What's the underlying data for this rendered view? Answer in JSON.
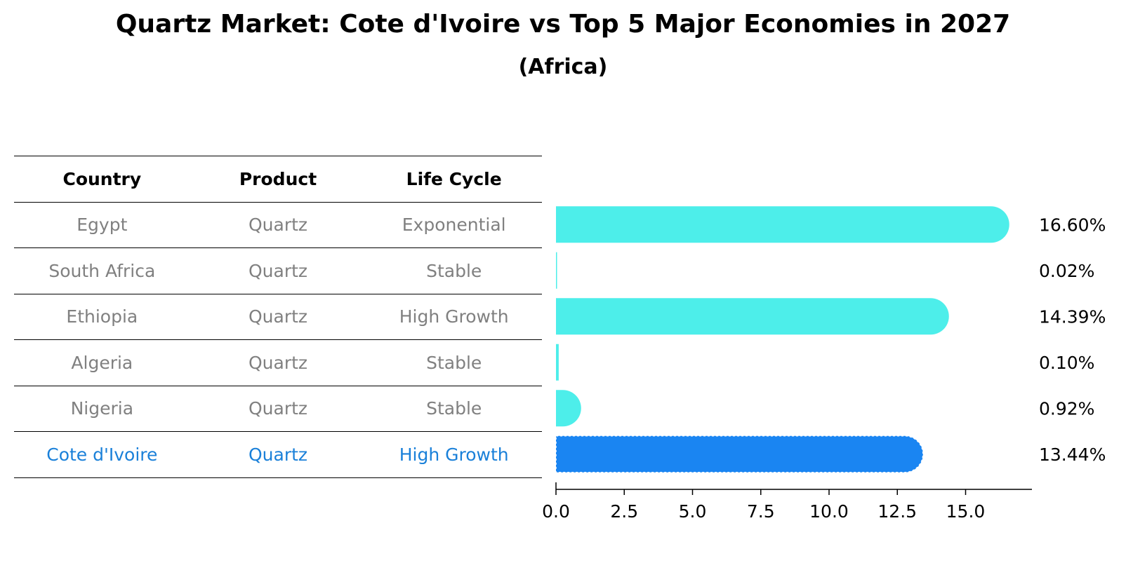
{
  "title": "Quartz Market: Cote d'Ivoire vs Top 5 Major Economies in 2027",
  "subtitle": "(Africa)",
  "table": {
    "headers": [
      "Country",
      "Product",
      "Life Cycle"
    ],
    "rows": [
      {
        "country": "Egypt",
        "product": "Quartz",
        "life_cycle": "Exponential"
      },
      {
        "country": "South Africa",
        "product": "Quartz",
        "life_cycle": "Stable"
      },
      {
        "country": "Ethiopia",
        "product": "Quartz",
        "life_cycle": "High Growth"
      },
      {
        "country": "Algeria",
        "product": "Quartz",
        "life_cycle": "Stable"
      },
      {
        "country": "Nigeria",
        "product": "Quartz",
        "life_cycle": "Stable"
      },
      {
        "country": "Cote d'Ivoire",
        "product": "Quartz",
        "life_cycle": "High Growth"
      }
    ]
  },
  "colors": {
    "bar": "#4deeea",
    "highlight_bar": "#1a85f2",
    "highlight_text": "#1a80d9",
    "muted_text": "#808080"
  },
  "chart_data": {
    "type": "bar",
    "orientation": "horizontal",
    "title": "Quartz Market: Cote d'Ivoire vs Top 5 Major Economies in 2027",
    "subtitle": "(Africa)",
    "categories": [
      "Egypt",
      "South Africa",
      "Ethiopia",
      "Algeria",
      "Nigeria",
      "Cote d'Ivoire"
    ],
    "values": [
      16.6,
      0.02,
      14.39,
      0.1,
      0.92,
      13.44
    ],
    "value_labels": [
      "16.60%",
      "0.02%",
      "14.39%",
      "0.10%",
      "0.92%",
      "13.44%"
    ],
    "highlight": "Cote d'Ivoire",
    "xlim": [
      0,
      17.5
    ],
    "xticks": [
      0.0,
      2.5,
      5.0,
      7.5,
      10.0,
      12.5,
      15.0
    ],
    "xtick_labels": [
      "0.0",
      "2.5",
      "5.0",
      "7.5",
      "10.0",
      "12.5",
      "15.0"
    ],
    "xlabel": "",
    "ylabel": "",
    "grid": false
  }
}
